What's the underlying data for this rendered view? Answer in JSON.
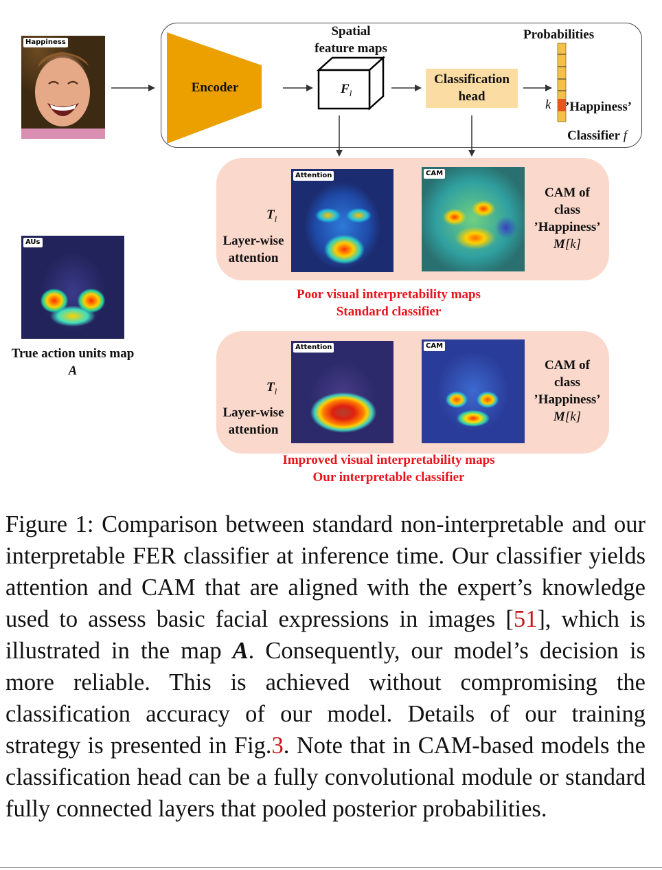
{
  "input_image": {
    "tag": "Happiness"
  },
  "classifier": {
    "encoder_label": "Encoder",
    "feature_maps_title_1": "Spatial",
    "feature_maps_title_2": "feature maps",
    "feature_symbol": "F",
    "feature_subscript": "l",
    "head_label_1": "Classification",
    "head_label_2": "head",
    "prob_title": "Probabilities",
    "k_label": "k",
    "happiness_label": "’Happiness’",
    "classifier_label": "Classifier",
    "classifier_symbol": "f"
  },
  "aus_map": {
    "tag": "AUs",
    "label_1": "True action units map",
    "label_2": "A"
  },
  "standard_panel": {
    "t_symbol": "T",
    "t_subscript": "l",
    "layer_label_1": "Layer-wise",
    "layer_label_2": "attention",
    "attention_tag": "Attention",
    "cam_tag": "CAM",
    "cam_label_1": "CAM of",
    "cam_label_2": "class",
    "cam_label_3": "’Happiness’",
    "m_symbol": "M",
    "m_arg": "[k]",
    "note_1": "Poor visual interpretability maps",
    "note_2": "Standard classifier"
  },
  "interpretable_panel": {
    "t_symbol": "T",
    "t_subscript": "l",
    "layer_label_1": "Layer-wise",
    "layer_label_2": "attention",
    "attention_tag": "Attention",
    "cam_tag": "CAM",
    "cam_label_1": "CAM of",
    "cam_label_2": "class",
    "cam_label_3": "’Happiness’",
    "m_symbol": "M",
    "m_arg": "[k]",
    "note_1": "Improved visual interpretability maps",
    "note_2": "Our interpretable classifier"
  },
  "caption": {
    "part1": "Figure 1: Comparison between standard non-interpretable and our interpretable FER classifier at inference time. Our classifier yields attention and CAM that are aligned with the expert’s knowledge used to assess basic facial expressions in images [",
    "ref1": "51",
    "part2": "], which is illustrated in the map ",
    "sym": "A",
    "part3": ". Consequently, our model’s decision is more reliable. This is achieved without compromising the classification accuracy of our model. Details of our training strategy is presented in Fig.",
    "ref2": "3",
    "part4": ". Note that in CAM-based models the classification head can be a fully convolutional module or standard fully connected layers that pooled posterior probabilities."
  },
  "colors": {
    "encoder": "#eba000",
    "head": "#fbdca3",
    "panel": "#fbd8cc",
    "note_red": "#e8141c",
    "prob_highlight": "#e8541c"
  }
}
